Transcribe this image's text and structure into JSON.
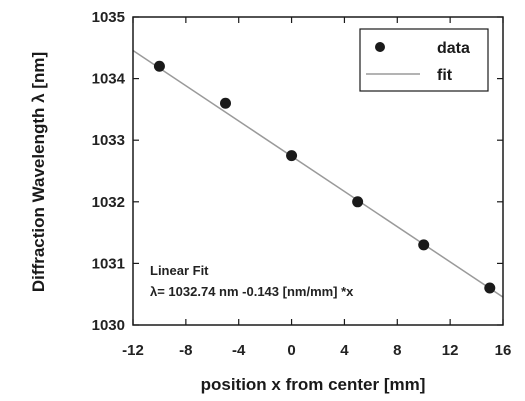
{
  "chart_data": {
    "type": "scatter",
    "xlabel": "position x from center [mm]",
    "ylabel": "Diffraction Wavelength λ [nm]",
    "xlim": [
      -12,
      16
    ],
    "ylim": [
      1030,
      1035
    ],
    "xticks": [
      -12,
      -8,
      -4,
      0,
      4,
      8,
      12,
      16
    ],
    "yticks": [
      1030,
      1031,
      1032,
      1033,
      1034,
      1035
    ],
    "legend_position": "top-right",
    "series": [
      {
        "name": "data",
        "kind": "points",
        "x": [
          -10,
          -5,
          0,
          5,
          10,
          15
        ],
        "y": [
          1034.2,
          1033.6,
          1032.75,
          1032.0,
          1031.3,
          1030.6
        ]
      },
      {
        "name": "fit",
        "kind": "line",
        "intercept": 1032.74,
        "slope": -0.143
      }
    ],
    "annotations": [
      "Linear Fit",
      "λ= 1032.74 nm -0.143 [nm/mm] *x"
    ],
    "colors": {
      "points": "#1a1a1a",
      "fit_line": "#9a9a9a",
      "axes": "#1a1a1a"
    }
  }
}
